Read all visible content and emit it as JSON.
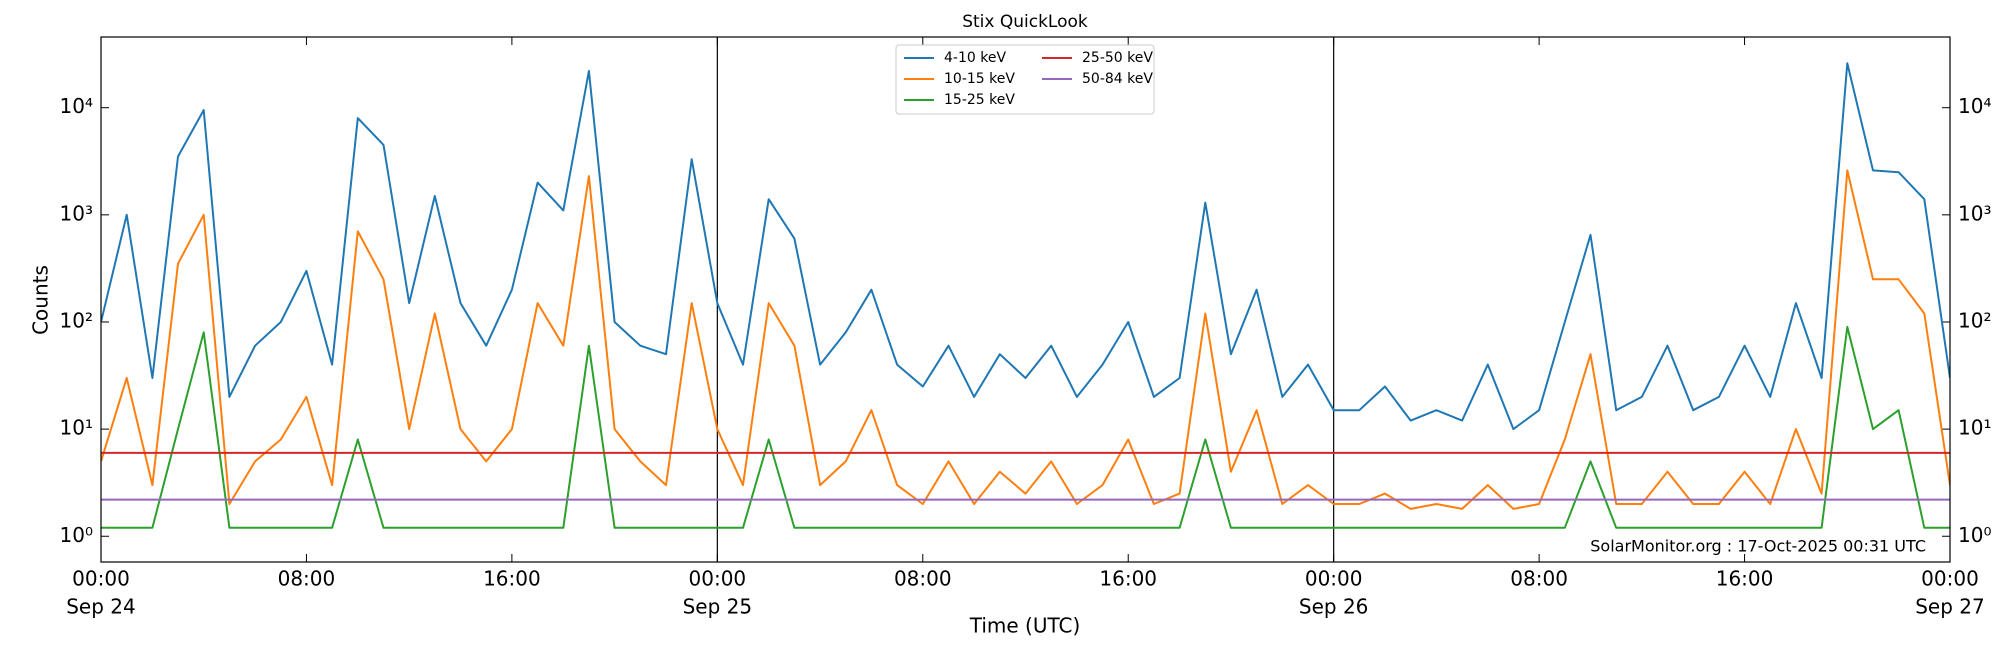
{
  "chart_data": {
    "type": "line",
    "title": "Stix QuickLook",
    "xlabel": "Time (UTC)",
    "ylabel": "Counts",
    "annotation": "SolarMonitor.org : 17-Oct-2025 00:31 UTC",
    "yscale": "log",
    "legend": "upper center",
    "day_lines": [
      24,
      48
    ],
    "xlim": [
      0,
      72
    ],
    "xticks": [
      {
        "value": 0,
        "label": "00:00",
        "sublabel": "Sep 24"
      },
      {
        "value": 8,
        "label": "08:00"
      },
      {
        "value": 16,
        "label": "16:00"
      },
      {
        "value": 24,
        "label": "00:00",
        "sublabel": "Sep 25"
      },
      {
        "value": 32,
        "label": "08:00"
      },
      {
        "value": 40,
        "label": "16:00"
      },
      {
        "value": 48,
        "label": "00:00",
        "sublabel": "Sep 26"
      },
      {
        "value": 56,
        "label": "08:00"
      },
      {
        "value": 64,
        "label": "16:00"
      },
      {
        "value": 72,
        "label": "00:00",
        "sublabel": "Sep 27"
      }
    ],
    "ylim": [
      0.575,
      45700
    ],
    "yticks": [
      {
        "value": 1,
        "label": "10⁰"
      },
      {
        "value": 10,
        "label": "10¹"
      },
      {
        "value": 100,
        "label": "10²"
      },
      {
        "value": 1000,
        "label": "10³"
      },
      {
        "value": 10000,
        "label": "10⁴"
      }
    ],
    "x": [
      0,
      1,
      2,
      3,
      4,
      5,
      6,
      7,
      8,
      9,
      10,
      11,
      12,
      13,
      14,
      15,
      16,
      17,
      18,
      19,
      20,
      21,
      22,
      23,
      24,
      25,
      26,
      27,
      28,
      29,
      30,
      31,
      32,
      33,
      34,
      35,
      36,
      37,
      38,
      39,
      40,
      41,
      42,
      43,
      44,
      45,
      46,
      47,
      48,
      49,
      50,
      51,
      52,
      53,
      54,
      55,
      56,
      57,
      58,
      59,
      60,
      61,
      62,
      63,
      64,
      65,
      66,
      67,
      68,
      69,
      70,
      71,
      72
    ],
    "series": [
      {
        "name": "4-10 keV",
        "color": "#1f77b4",
        "values": [
          100,
          1000,
          30,
          3500,
          9500,
          20,
          60,
          100,
          300,
          40,
          8000,
          4500,
          150,
          1500,
          150,
          60,
          200,
          2000,
          1100,
          22000,
          100,
          60,
          50,
          3300,
          150,
          40,
          1400,
          600,
          40,
          80,
          200,
          40,
          25,
          60,
          20,
          50,
          30,
          60,
          20,
          40,
          100,
          20,
          30,
          1300,
          50,
          200,
          20,
          40,
          15,
          15,
          25,
          12,
          15,
          12,
          40,
          10,
          15,
          100,
          650,
          15,
          20,
          60,
          15,
          20,
          60,
          20,
          150,
          30,
          26000,
          2600,
          2500,
          1400,
          30
        ]
      },
      {
        "name": "10-15 keV",
        "color": "#ff7f0e",
        "values": [
          5,
          30,
          3,
          350,
          1000,
          2,
          5,
          8,
          20,
          3,
          700,
          250,
          10,
          120,
          10,
          5,
          10,
          150,
          60,
          2300,
          10,
          5,
          3,
          150,
          10,
          3,
          150,
          60,
          3,
          5,
          15,
          3,
          2,
          5,
          2,
          4,
          2.5,
          5,
          2,
          3,
          8,
          2,
          2.5,
          120,
          4,
          15,
          2,
          3,
          2,
          2,
          2.5,
          1.8,
          2,
          1.8,
          3,
          1.8,
          2,
          8,
          50,
          2,
          2,
          4,
          2,
          2,
          4,
          2,
          10,
          2.5,
          2600,
          250,
          250,
          120,
          3
        ]
      },
      {
        "name": "15-25 keV",
        "color": "#2ca02c",
        "values": [
          1.2,
          1.2,
          1.2,
          10,
          80,
          1.2,
          1.2,
          1.2,
          1.2,
          1.2,
          8,
          1.2,
          1.2,
          1.2,
          1.2,
          1.2,
          1.2,
          1.2,
          1.2,
          60,
          1.2,
          1.2,
          1.2,
          1.2,
          1.2,
          1.2,
          8,
          1.2,
          1.2,
          1.2,
          1.2,
          1.2,
          1.2,
          1.2,
          1.2,
          1.2,
          1.2,
          1.2,
          1.2,
          1.2,
          1.2,
          1.2,
          1.2,
          8,
          1.2,
          1.2,
          1.2,
          1.2,
          1.2,
          1.2,
          1.2,
          1.2,
          1.2,
          1.2,
          1.2,
          1.2,
          1.2,
          1.2,
          5,
          1.2,
          1.2,
          1.2,
          1.2,
          1.2,
          1.2,
          1.2,
          1.2,
          1.2,
          90,
          10,
          15,
          1.2,
          1.2
        ]
      },
      {
        "name": "25-50 keV",
        "color": "#d62728",
        "values": [
          6,
          6,
          6,
          6,
          6,
          6,
          6,
          6,
          6,
          6,
          6,
          6,
          6,
          6,
          6,
          6,
          6,
          6,
          6,
          6,
          6,
          6,
          6,
          6,
          6,
          6,
          6,
          6,
          6,
          6,
          6,
          6,
          6,
          6,
          6,
          6,
          6,
          6,
          6,
          6,
          6,
          6,
          6,
          6,
          6,
          6,
          6,
          6,
          6,
          6,
          6,
          6,
          6,
          6,
          6,
          6,
          6,
          6,
          6,
          6,
          6,
          6,
          6,
          6,
          6,
          6,
          6,
          6,
          6,
          6,
          6,
          6,
          6
        ]
      },
      {
        "name": "50-84 keV",
        "color": "#9467bd",
        "values": [
          2.2,
          2.2,
          2.2,
          2.2,
          2.2,
          2.2,
          2.2,
          2.2,
          2.2,
          2.2,
          2.2,
          2.2,
          2.2,
          2.2,
          2.2,
          2.2,
          2.2,
          2.2,
          2.2,
          2.2,
          2.2,
          2.2,
          2.2,
          2.2,
          2.2,
          2.2,
          2.2,
          2.2,
          2.2,
          2.2,
          2.2,
          2.2,
          2.2,
          2.2,
          2.2,
          2.2,
          2.2,
          2.2,
          2.2,
          2.2,
          2.2,
          2.2,
          2.2,
          2.2,
          2.2,
          2.2,
          2.2,
          2.2,
          2.2,
          2.2,
          2.2,
          2.2,
          2.2,
          2.2,
          2.2,
          2.2,
          2.2,
          2.2,
          2.2,
          2.2,
          2.2,
          2.2,
          2.2,
          2.2,
          2.2,
          2.2,
          2.2,
          2.2,
          2.2,
          2.2,
          2.2,
          2.2,
          2.2
        ]
      }
    ]
  }
}
